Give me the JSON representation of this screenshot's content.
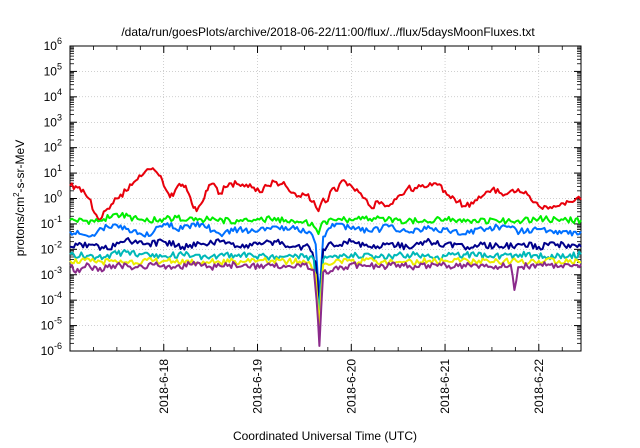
{
  "chart_data": {
    "type": "line",
    "title": "/data/run/goesPlots/archive/2018-06-22/11:00/flux/../flux/5daysMoonFluxes.txt",
    "xlabel": "Coordinated Universal Time (UTC)",
    "ylabel": {
      "base": "protons/cm",
      "sup": "2",
      "rest": "-s-sr-MeV"
    },
    "x_tick_labels": [
      "2018-6-18",
      "2018-6-19",
      "2018-6-20",
      "2018-6-21",
      "2018-6-22"
    ],
    "x_range_days": [
      0,
      5.45
    ],
    "x_ticks_days": [
      1,
      2,
      3,
      4,
      5
    ],
    "y_scale": "log",
    "ylim_exp": [
      -6,
      6
    ],
    "y_tick_exponents": [
      -6,
      -5,
      -4,
      -3,
      -2,
      -1,
      0,
      1,
      2,
      3,
      4,
      5,
      6
    ],
    "grid": true,
    "series": [
      {
        "color": "#e8000b",
        "values": [
          [
            0.0,
            0.5
          ],
          [
            0.1,
            0.45
          ],
          [
            0.2,
            0.0
          ],
          [
            0.3,
            -0.8
          ],
          [
            0.4,
            -0.4
          ],
          [
            0.5,
            0.0
          ],
          [
            0.6,
            0.3
          ],
          [
            0.7,
            0.7
          ],
          [
            0.8,
            1.05
          ],
          [
            0.85,
            1.15
          ],
          [
            0.9,
            1.12
          ],
          [
            0.95,
            0.9
          ],
          [
            1.0,
            0.5
          ],
          [
            1.05,
            0.2
          ],
          [
            1.1,
            0.1
          ],
          [
            1.15,
            0.5
          ],
          [
            1.2,
            0.55
          ],
          [
            1.25,
            0.3
          ],
          [
            1.3,
            -0.2
          ],
          [
            1.35,
            -0.5
          ],
          [
            1.4,
            -0.2
          ],
          [
            1.45,
            0.3
          ],
          [
            1.5,
            0.55
          ],
          [
            1.55,
            0.5
          ],
          [
            1.6,
            0.2
          ],
          [
            1.7,
            0.6
          ],
          [
            1.8,
            0.55
          ],
          [
            1.9,
            0.45
          ],
          [
            2.0,
            0.4
          ],
          [
            2.05,
            0.25
          ],
          [
            2.1,
            0.5
          ],
          [
            2.2,
            0.65
          ],
          [
            2.3,
            0.5
          ],
          [
            2.4,
            0.2
          ],
          [
            2.5,
            0.15
          ],
          [
            2.6,
            -0.1
          ],
          [
            2.65,
            -0.5
          ],
          [
            2.7,
            0.0
          ],
          [
            2.75,
            -0.1
          ],
          [
            2.8,
            0.4
          ],
          [
            2.85,
            0.3
          ],
          [
            2.9,
            0.7
          ],
          [
            3.0,
            0.5
          ],
          [
            3.1,
            0.2
          ],
          [
            3.15,
            0.0
          ],
          [
            3.2,
            -0.3
          ],
          [
            3.3,
            -0.2
          ],
          [
            3.4,
            -0.3
          ],
          [
            3.5,
            0.1
          ],
          [
            3.6,
            0.4
          ],
          [
            3.7,
            0.4
          ],
          [
            3.8,
            0.45
          ],
          [
            3.9,
            0.6
          ],
          [
            4.0,
            0.3
          ],
          [
            4.1,
            0.0
          ],
          [
            4.2,
            -0.3
          ],
          [
            4.3,
            -0.2
          ],
          [
            4.4,
            0.1
          ],
          [
            4.5,
            0.35
          ],
          [
            4.6,
            0.2
          ],
          [
            4.7,
            0.3
          ],
          [
            4.8,
            0.25
          ],
          [
            4.9,
            0.1
          ],
          [
            5.0,
            -0.3
          ],
          [
            5.1,
            -0.4
          ],
          [
            5.2,
            -0.3
          ],
          [
            5.3,
            -0.1
          ],
          [
            5.4,
            0.0
          ],
          [
            5.45,
            -0.05
          ]
        ]
      },
      {
        "color": "#00ee00",
        "values": [
          [
            0.0,
            -0.85
          ],
          [
            0.3,
            -0.9
          ],
          [
            0.5,
            -0.6
          ],
          [
            0.8,
            -0.9
          ],
          [
            1.0,
            -0.8
          ],
          [
            1.3,
            -0.75
          ],
          [
            1.5,
            -0.85
          ],
          [
            1.8,
            -0.9
          ],
          [
            2.0,
            -0.8
          ],
          [
            2.3,
            -0.85
          ],
          [
            2.5,
            -0.9
          ],
          [
            2.6,
            -1.1
          ],
          [
            2.65,
            -1.4
          ],
          [
            2.7,
            -0.9
          ],
          [
            2.9,
            -0.85
          ],
          [
            3.2,
            -0.8
          ],
          [
            3.5,
            -0.85
          ],
          [
            3.8,
            -0.9
          ],
          [
            4.0,
            -0.8
          ],
          [
            4.3,
            -0.85
          ],
          [
            4.6,
            -0.9
          ],
          [
            5.0,
            -0.8
          ],
          [
            5.3,
            -0.85
          ],
          [
            5.45,
            -0.85
          ]
        ]
      },
      {
        "color": "#0070ff",
        "values": [
          [
            0.0,
            -1.3
          ],
          [
            0.2,
            -1.5
          ],
          [
            0.4,
            -1.1
          ],
          [
            0.6,
            -1.2
          ],
          [
            0.8,
            -1.5
          ],
          [
            1.0,
            -1.0
          ],
          [
            1.2,
            -1.2
          ],
          [
            1.4,
            -1.0
          ],
          [
            1.6,
            -1.4
          ],
          [
            1.8,
            -1.2
          ],
          [
            2.0,
            -1.3
          ],
          [
            2.2,
            -1.1
          ],
          [
            2.4,
            -1.2
          ],
          [
            2.55,
            -1.3
          ],
          [
            2.62,
            -1.8
          ],
          [
            2.66,
            -3.8
          ],
          [
            2.7,
            -1.5
          ],
          [
            2.8,
            -1.0
          ],
          [
            3.0,
            -1.2
          ],
          [
            3.2,
            -1.3
          ],
          [
            3.4,
            -1.1
          ],
          [
            3.6,
            -1.3
          ],
          [
            3.8,
            -1.2
          ],
          [
            4.0,
            -1.2
          ],
          [
            4.2,
            -1.4
          ],
          [
            4.4,
            -1.2
          ],
          [
            4.6,
            -1.1
          ],
          [
            4.8,
            -1.3
          ],
          [
            5.0,
            -1.2
          ],
          [
            5.2,
            -1.4
          ],
          [
            5.45,
            -1.3
          ]
        ]
      },
      {
        "color": "#00008b",
        "values": [
          [
            0.0,
            -1.9
          ],
          [
            0.2,
            -1.8
          ],
          [
            0.4,
            -2.0
          ],
          [
            0.6,
            -1.6
          ],
          [
            0.8,
            -1.8
          ],
          [
            1.0,
            -1.7
          ],
          [
            1.2,
            -1.9
          ],
          [
            1.4,
            -1.8
          ],
          [
            1.6,
            -1.7
          ],
          [
            1.8,
            -1.9
          ],
          [
            2.0,
            -1.8
          ],
          [
            2.2,
            -1.7
          ],
          [
            2.4,
            -1.9
          ],
          [
            2.55,
            -1.9
          ],
          [
            2.62,
            -2.5
          ],
          [
            2.66,
            -4.2
          ],
          [
            2.7,
            -2.0
          ],
          [
            2.8,
            -1.8
          ],
          [
            3.0,
            -1.7
          ],
          [
            3.2,
            -1.9
          ],
          [
            3.4,
            -1.8
          ],
          [
            3.6,
            -1.9
          ],
          [
            3.8,
            -1.7
          ],
          [
            4.0,
            -1.8
          ],
          [
            4.2,
            -1.9
          ],
          [
            4.4,
            -1.8
          ],
          [
            4.6,
            -1.9
          ],
          [
            4.8,
            -1.8
          ],
          [
            5.0,
            -1.9
          ],
          [
            5.2,
            -1.8
          ],
          [
            5.45,
            -1.9
          ]
        ]
      },
      {
        "color": "#00b8b8",
        "values": [
          [
            0.0,
            -2.2
          ],
          [
            0.3,
            -2.3
          ],
          [
            0.6,
            -2.1
          ],
          [
            0.9,
            -2.3
          ],
          [
            1.2,
            -2.2
          ],
          [
            1.5,
            -2.3
          ],
          [
            1.8,
            -2.2
          ],
          [
            2.1,
            -2.3
          ],
          [
            2.4,
            -2.2
          ],
          [
            2.6,
            -2.4
          ],
          [
            2.65,
            -4.4
          ],
          [
            2.7,
            -2.4
          ],
          [
            3.0,
            -2.2
          ],
          [
            3.3,
            -2.3
          ],
          [
            3.6,
            -2.2
          ],
          [
            3.9,
            -2.3
          ],
          [
            4.2,
            -2.2
          ],
          [
            4.5,
            -2.3
          ],
          [
            4.8,
            -2.2
          ],
          [
            5.1,
            -2.3
          ],
          [
            5.45,
            -2.2
          ]
        ]
      },
      {
        "color": "#eded00",
        "values": [
          [
            0.0,
            -2.45
          ],
          [
            0.5,
            -2.5
          ],
          [
            1.0,
            -2.45
          ],
          [
            1.5,
            -2.5
          ],
          [
            2.0,
            -2.45
          ],
          [
            2.55,
            -2.5
          ],
          [
            2.62,
            -3.0
          ],
          [
            2.66,
            -5.0
          ],
          [
            2.7,
            -2.6
          ],
          [
            3.0,
            -2.45
          ],
          [
            3.5,
            -2.5
          ],
          [
            4.0,
            -2.45
          ],
          [
            4.5,
            -2.5
          ],
          [
            5.0,
            -2.45
          ],
          [
            5.45,
            -2.5
          ]
        ]
      },
      {
        "color": "#8b2a8b",
        "values": [
          [
            0.0,
            -2.65
          ],
          [
            0.1,
            -2.9
          ],
          [
            0.2,
            -2.6
          ],
          [
            0.3,
            -2.85
          ],
          [
            0.5,
            -2.6
          ],
          [
            0.7,
            -2.7
          ],
          [
            0.9,
            -2.6
          ],
          [
            1.1,
            -2.7
          ],
          [
            1.3,
            -2.6
          ],
          [
            1.5,
            -2.7
          ],
          [
            1.7,
            -2.6
          ],
          [
            1.9,
            -2.7
          ],
          [
            2.1,
            -2.6
          ],
          [
            2.3,
            -2.7
          ],
          [
            2.5,
            -2.6
          ],
          [
            2.6,
            -2.8
          ],
          [
            2.63,
            -4.0
          ],
          [
            2.66,
            -5.8
          ],
          [
            2.7,
            -2.9
          ],
          [
            2.9,
            -2.7
          ],
          [
            3.1,
            -2.6
          ],
          [
            3.3,
            -2.7
          ],
          [
            3.5,
            -2.6
          ],
          [
            3.7,
            -2.7
          ],
          [
            3.9,
            -2.6
          ],
          [
            4.1,
            -2.7
          ],
          [
            4.3,
            -2.6
          ],
          [
            4.5,
            -2.7
          ],
          [
            4.7,
            -2.6
          ],
          [
            4.74,
            -3.6
          ],
          [
            4.78,
            -2.7
          ],
          [
            5.0,
            -2.6
          ],
          [
            5.2,
            -2.7
          ],
          [
            5.45,
            -2.6
          ]
        ]
      }
    ]
  }
}
